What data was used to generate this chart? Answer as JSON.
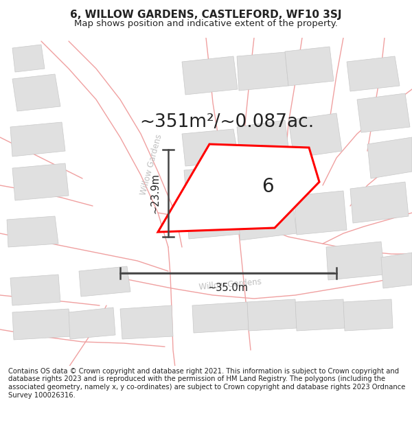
{
  "title_line1": "6, WILLOW GARDENS, CASTLEFORD, WF10 3SJ",
  "title_line2": "Map shows position and indicative extent of the property.",
  "area_text": "~351m²/~0.087ac.",
  "label_6": "6",
  "dim_width": "~35.0m",
  "dim_height": "~23.9m",
  "road_label1": "Willow Gardens",
  "road_label2": "Willow Gardens",
  "footer_text": "Contains OS data © Crown copyright and database right 2021. This information is subject to Crown copyright and database rights 2023 and is reproduced with the permission of HM Land Registry. The polygons (including the associated geometry, namely x, y co-ordinates) are subject to Crown copyright and database rights 2023 Ordnance Survey 100026316.",
  "bg_color": "#ffffff",
  "road_color": "#f0a0a0",
  "building_color": "#e0e0e0",
  "building_edge": "#c8c8c8",
  "plot_color": "#ff0000",
  "dim_color": "#444444",
  "text_color": "#222222",
  "road_text_color": "#c0c0c0",
  "title_fontsize": 11,
  "subtitle_fontsize": 9.5,
  "area_fontsize": 19,
  "label_fontsize": 20,
  "road_fontsize": 8.5,
  "dim_fontsize": 10.5,
  "footer_fontsize": 7.2
}
